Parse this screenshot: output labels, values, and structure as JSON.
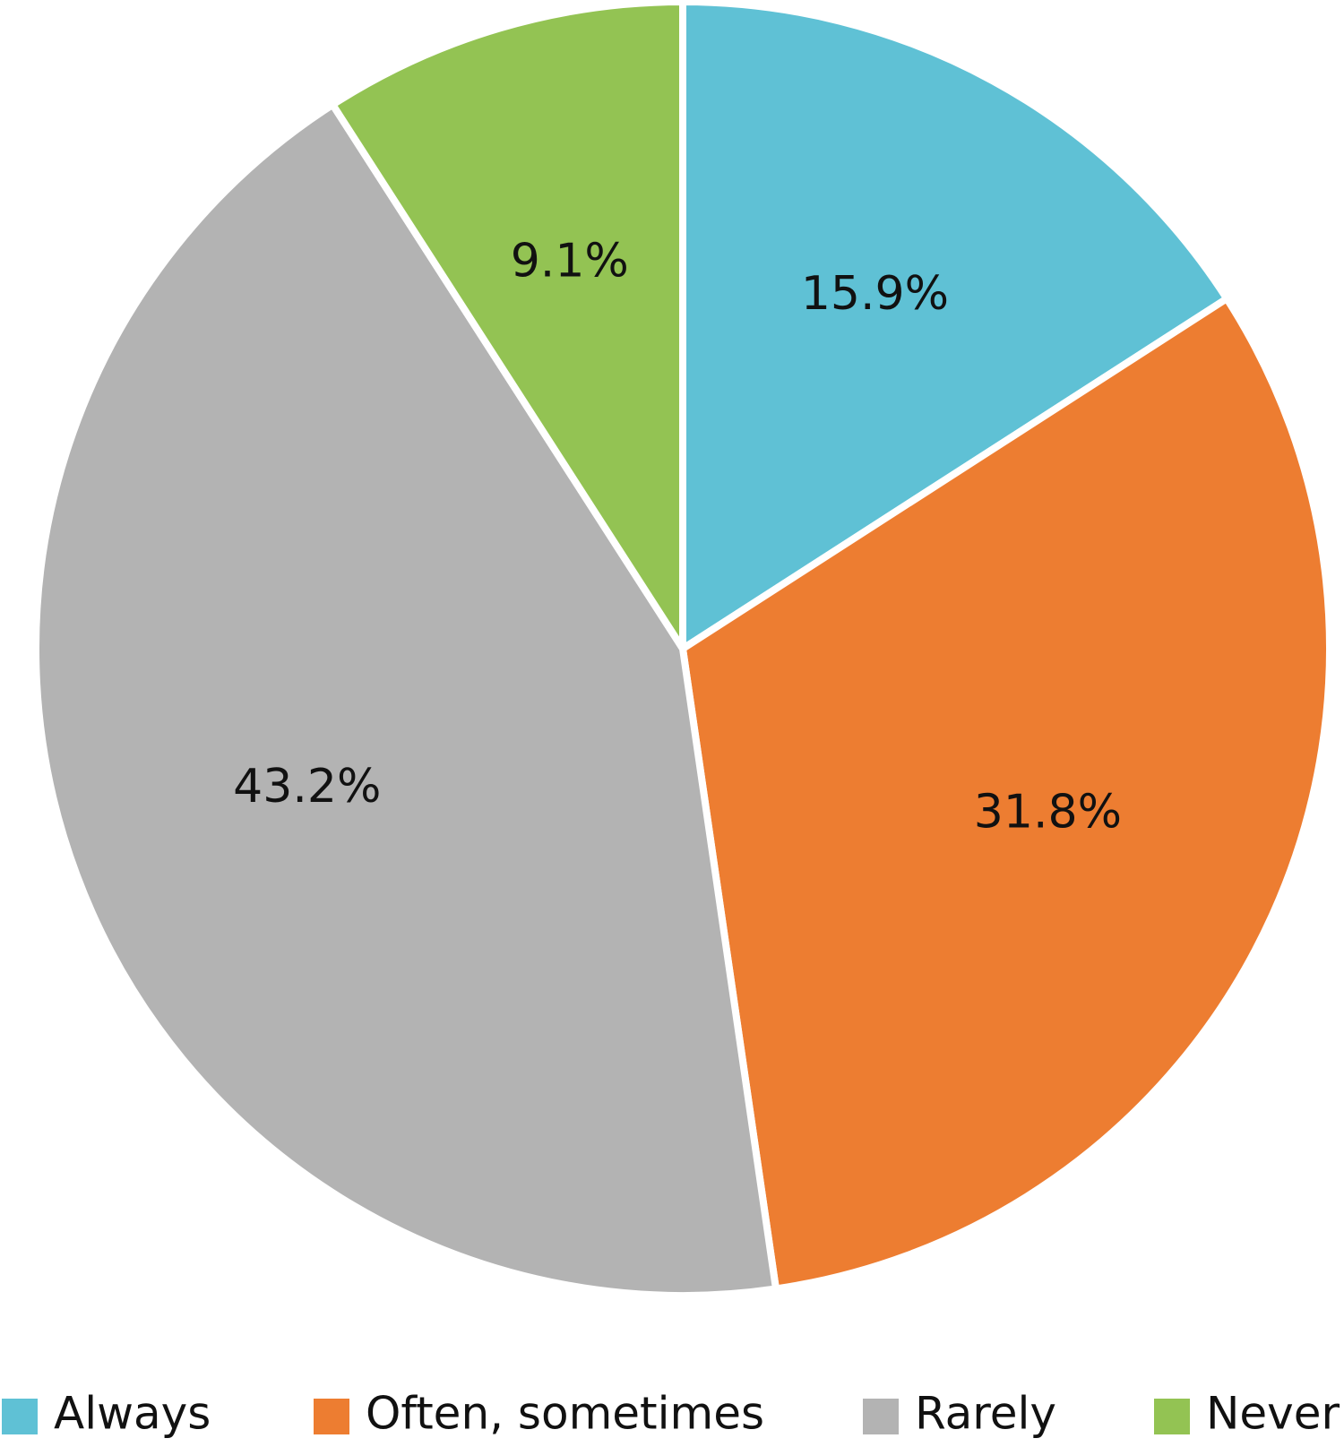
{
  "chart_data": {
    "type": "pie",
    "categories": [
      "Always",
      "Often, sometimes",
      "Rarely",
      "Never"
    ],
    "values": [
      15.9,
      31.8,
      43.2,
      9.1
    ],
    "value_labels": [
      "15.9%",
      "31.8%",
      "43.2%",
      "9.1%"
    ],
    "colors": [
      "#5fc1d5",
      "#ed7d31",
      "#b3b3b3",
      "#93c353"
    ],
    "legend": "bottom"
  }
}
